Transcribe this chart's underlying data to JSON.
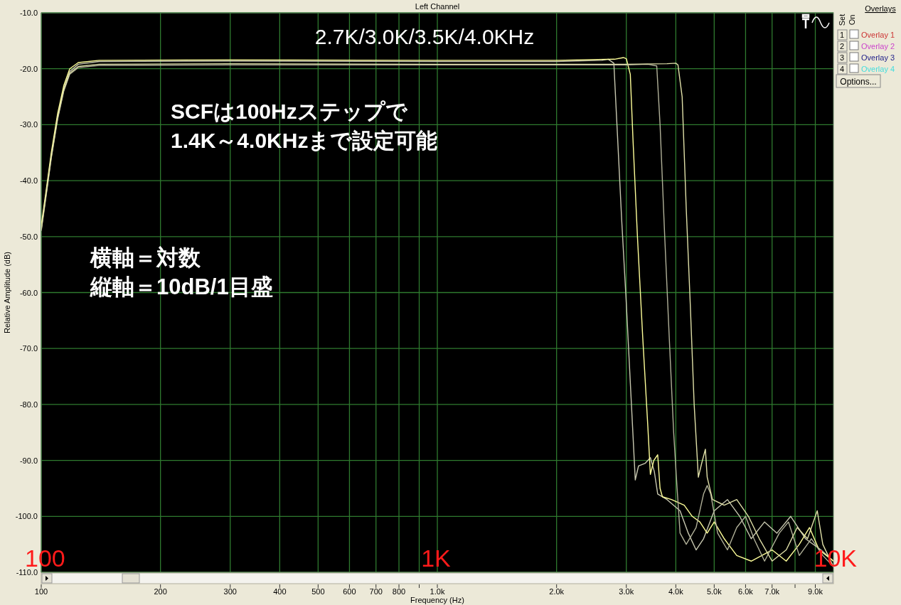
{
  "chart_data": {
    "type": "line",
    "title": "Left Channel",
    "xlabel": "Frequency (Hz)",
    "ylabel": "Relative Amplitude (dB)",
    "annotations": [
      "2.7K/3.0K/3.5K/4.0KHz",
      "SCFは100Hzステップで",
      "1.4K～4.0KHzまで設定可能",
      "横軸＝対数",
      "縦軸＝10dB/1目盛",
      "100",
      "1K",
      "10K",
      "Overlays",
      "Set",
      "On",
      "1",
      "2",
      "3",
      "4",
      "Overlay 1",
      "Overlay 2",
      "Overlay 3",
      "Overlay 4",
      "Options..."
    ],
    "log": "x",
    "grid": true,
    "marker": "none",
    "line_style": "solid",
    "xlim": [
      100,
      10000
    ],
    "ylim": [
      -110,
      -10
    ],
    "xticks": [
      100,
      200,
      300,
      400,
      500,
      600,
      700,
      800,
      {
        "value": 900,
        "label": null
      },
      {
        "value": 1000,
        "label": "1.0k"
      },
      {
        "value": 2000,
        "label": "2.0k"
      },
      {
        "value": 3000,
        "label": "3.0k"
      },
      {
        "value": 4000,
        "label": "4.0k"
      },
      {
        "value": 5000,
        "label": "5.0k"
      },
      {
        "value": 6000,
        "label": "6.0k"
      },
      {
        "value": 7000,
        "label": "7.0k"
      },
      {
        "value": 8000,
        "label": null
      },
      {
        "value": 9000,
        "label": "9.0k"
      }
    ],
    "yticks": [
      {
        "value": -10,
        "label": "-10.0"
      },
      {
        "value": -20,
        "label": "-20.0"
      },
      {
        "value": -30,
        "label": "-30.0"
      },
      {
        "value": -40,
        "label": "-40.0"
      },
      {
        "value": -50,
        "label": "-50.0"
      },
      {
        "value": -60,
        "label": "-60.0"
      },
      {
        "value": -70,
        "label": "-70.0"
      },
      {
        "value": -80,
        "label": "-80.0"
      },
      {
        "value": -90,
        "label": "-90.0"
      },
      {
        "value": -100,
        "label": "-100.0"
      },
      {
        "value": -110,
        "label": "-110.0"
      }
    ],
    "series": [
      {
        "color": "#c8c8b0",
        "x": [
          100,
          103,
          106,
          110,
          114,
          118,
          124,
          140,
          300,
          1000,
          2000,
          2600,
          2700,
          2790,
          2850,
          2920,
          3000,
          3080,
          3160,
          3220,
          3350,
          3450,
          3530,
          3600,
          3800,
          4100,
          4300,
          4500,
          4700,
          5000,
          5400,
          5800,
          6200,
          6700,
          7200,
          7800,
          8500,
          9300,
          10000
        ],
        "values": [
          -48.5,
          -42,
          -35.5,
          -28.5,
          -23.5,
          -20.5,
          -19.2,
          -18.7,
          -18.6,
          -18.7,
          -18.7,
          -18.5,
          -18.3,
          -19,
          -32,
          -47,
          -62,
          -78,
          -93.5,
          -91,
          -90.5,
          -89.5,
          -92,
          -96,
          -97,
          -99,
          -103,
          -106,
          -104,
          -99,
          -97,
          -100,
          -104,
          -101,
          -103,
          -100,
          -104,
          -106,
          -108
        ]
      },
      {
        "color": "#ffff99",
        "x": [
          100,
          103,
          106,
          110,
          114,
          118,
          124,
          140,
          300,
          1000,
          2000,
          2800,
          2950,
          3000,
          3070,
          3120,
          3200,
          3300,
          3400,
          3450,
          3520,
          3600,
          3650,
          3700,
          3900,
          4200,
          4400,
          4600,
          4800,
          5000,
          5300,
          5700,
          6200,
          7000,
          7600,
          8200,
          8700,
          9200,
          10000
        ],
        "values": [
          -48,
          -41.5,
          -35,
          -28,
          -23,
          -20,
          -18.9,
          -18.5,
          -18.4,
          -18.5,
          -18.5,
          -18.3,
          -18,
          -18.2,
          -21,
          -33,
          -50,
          -68,
          -84,
          -92.5,
          -90,
          -89,
          -95,
          -96.5,
          -97,
          -98,
          -100,
          -101,
          -103,
          -101,
          -104,
          -107,
          -108,
          -106,
          -108,
          -105,
          -102,
          -106,
          -108
        ]
      },
      {
        "color": "#b0b098",
        "x": [
          100,
          103,
          106,
          110,
          114,
          118,
          124,
          140,
          300,
          1000,
          2000,
          3000,
          3400,
          3580,
          3650,
          3750,
          3850,
          3950,
          4030,
          4100,
          4250,
          4500,
          4700,
          4800,
          4900,
          5100,
          5400,
          5700,
          6000,
          6300,
          6700,
          7300,
          7700,
          8200,
          8800,
          9400,
          10000
        ],
        "values": [
          -49,
          -42.5,
          -36,
          -29,
          -24,
          -21,
          -19.8,
          -19.4,
          -19.3,
          -19.3,
          -19.3,
          -19.3,
          -19.2,
          -19.5,
          -30,
          -50,
          -68,
          -85,
          -95,
          -103,
          -105,
          -102,
          -96,
          -94.5,
          -96,
          -103,
          -106,
          -102,
          -100,
          -104,
          -108,
          -103,
          -101,
          -107,
          -104,
          -107,
          -109
        ]
      },
      {
        "color": "#e0e0a8",
        "x": [
          100,
          103,
          106,
          110,
          114,
          118,
          124,
          140,
          300,
          1000,
          2000,
          3000,
          3800,
          4000,
          4050,
          4150,
          4250,
          4350,
          4450,
          4560,
          4650,
          4750,
          4800,
          4950,
          5300,
          5700,
          6100,
          6500,
          7000,
          7600,
          8100,
          8600,
          9100,
          9400,
          10000
        ],
        "values": [
          -48.8,
          -42.2,
          -35.8,
          -28.8,
          -23.8,
          -20.8,
          -19.6,
          -19.2,
          -19.1,
          -19.2,
          -19.2,
          -19.2,
          -19.1,
          -19,
          -19.3,
          -25,
          -45,
          -62,
          -80,
          -93,
          -90.5,
          -88,
          -93,
          -97,
          -98,
          -97,
          -100,
          -104,
          -108,
          -106,
          -102,
          -104,
          -99,
          -105,
          -109
        ]
      }
    ]
  }
}
